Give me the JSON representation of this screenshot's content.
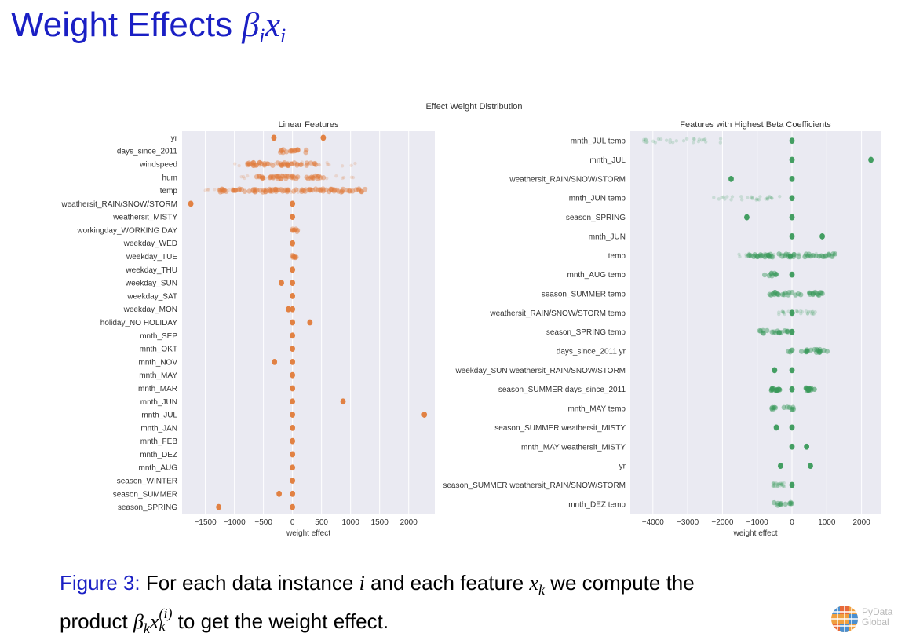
{
  "slide": {
    "title_text": "Weight Effects",
    "title_math_beta": "β",
    "title_math_i": "i",
    "title_math_x": "x",
    "title_math_i2": "i",
    "caption_label": "Figure 3:",
    "caption_text_1": " For each data instance ",
    "caption_i": "i",
    "caption_text_2": " and each feature ",
    "caption_x": "x",
    "caption_k": "k",
    "caption_text_3": " we compute the",
    "caption_text_4": "product ",
    "caption_beta": "β",
    "caption_k2": "k",
    "caption_x2": "x",
    "caption_sup": "(i)",
    "caption_k3": "k",
    "caption_text_5": " to get the weight effect.",
    "logo_line1": "PyData",
    "logo_line2": "Global",
    "title_color": "#1a1fc4"
  },
  "chart_data": [
    {
      "type": "scatter",
      "suptitle": "Effect Weight Distribution",
      "title": "Linear Features",
      "xlabel": "weight effect",
      "xlim": [
        -1900,
        2450
      ],
      "xticks": [
        -1500,
        -1000,
        -500,
        0,
        500,
        1000,
        1500,
        2000
      ],
      "xtick_labels": [
        "−1500",
        "−1000",
        "−500",
        "0",
        "500",
        "1000",
        "1500",
        "2000"
      ],
      "color": "#e07b39",
      "background": "#eaeaf2",
      "grid": true,
      "features": [
        {
          "label": "yr",
          "values": [
            -320,
            530
          ]
        },
        {
          "label": "days_since_2011",
          "range": [
            -250,
            260
          ]
        },
        {
          "label": "windspeed",
          "range": [
            -780,
            520
          ],
          "faint": [
            -1100,
            1180
          ]
        },
        {
          "label": "hum",
          "range": [
            -680,
            580
          ],
          "faint": [
            -950,
            1100
          ]
        },
        {
          "label": "temp",
          "range": [
            -1250,
            1270
          ],
          "faint": [
            -1500,
            1300
          ]
        },
        {
          "label": "weathersit_RAIN/SNOW/STORM",
          "values": [
            -1750,
            0
          ]
        },
        {
          "label": "weathersit_MISTY",
          "values": [
            0
          ]
        },
        {
          "label": "workingday_WORKING DAY",
          "range": [
            -5,
            95
          ]
        },
        {
          "label": "weekday_WED",
          "values": [
            0
          ]
        },
        {
          "label": "weekday_TUE",
          "range": [
            -5,
            70
          ]
        },
        {
          "label": "weekday_THU",
          "values": [
            0
          ]
        },
        {
          "label": "weekday_SUN",
          "values": [
            -190,
            0
          ]
        },
        {
          "label": "weekday_SAT",
          "values": [
            0
          ]
        },
        {
          "label": "weekday_MON",
          "values": [
            -70,
            0
          ]
        },
        {
          "label": "holiday_NO HOLIDAY",
          "values": [
            0,
            300
          ]
        },
        {
          "label": "mnth_SEP",
          "values": [
            0
          ]
        },
        {
          "label": "mnth_OKT",
          "values": [
            0
          ]
        },
        {
          "label": "mnth_NOV",
          "values": [
            -310,
            0
          ]
        },
        {
          "label": "mnth_MAY",
          "values": [
            0
          ]
        },
        {
          "label": "mnth_MAR",
          "values": [
            0
          ]
        },
        {
          "label": "mnth_JUN",
          "values": [
            0,
            870
          ]
        },
        {
          "label": "mnth_JUL",
          "values": [
            0,
            2270
          ]
        },
        {
          "label": "mnth_JAN",
          "values": [
            0
          ]
        },
        {
          "label": "mnth_FEB",
          "values": [
            0
          ]
        },
        {
          "label": "mnth_DEZ",
          "values": [
            0
          ]
        },
        {
          "label": "mnth_AUG",
          "values": [
            0
          ]
        },
        {
          "label": "season_WINTER",
          "values": [
            0
          ]
        },
        {
          "label": "season_SUMMER",
          "values": [
            -230,
            0
          ]
        },
        {
          "label": "season_SPRING",
          "values": [
            -1270,
            0
          ]
        }
      ]
    },
    {
      "type": "scatter",
      "title": "Features with Highest Beta Coefficients",
      "xlabel": "weight effect",
      "xlim": [
        -4650,
        2550
      ],
      "xticks": [
        -4000,
        -3000,
        -2000,
        -1000,
        0,
        1000,
        2000
      ],
      "xtick_labels": [
        "−4000",
        "−3000",
        "−2000",
        "−1000",
        "0",
        "1000",
        "2000"
      ],
      "color": "#3a9a5a",
      "background": "#eaeaf2",
      "grid": true,
      "features": [
        {
          "label": "mnth_JUL temp",
          "values": [
            0
          ],
          "faint": [
            -4500,
            -2000
          ]
        },
        {
          "label": "mnth_JUL",
          "values": [
            0,
            2270
          ]
        },
        {
          "label": "weathersit_RAIN/SNOW/STORM",
          "values": [
            -1750,
            0
          ]
        },
        {
          "label": "mnth_JUN temp",
          "values": [
            0
          ],
          "faint": [
            -2300,
            -300
          ]
        },
        {
          "label": "season_SPRING",
          "values": [
            -1300,
            0
          ]
        },
        {
          "label": "mnth_JUN",
          "values": [
            0,
            870
          ]
        },
        {
          "label": "temp",
          "range": [
            -1250,
            1270
          ],
          "faint": [
            -1600,
            1300
          ]
        },
        {
          "label": "mnth_AUG temp",
          "values": [
            0
          ],
          "range": [
            -900,
            -450
          ]
        },
        {
          "label": "season_SUMMER temp",
          "range": [
            -650,
            900
          ]
        },
        {
          "label": "weathersit_RAIN/SNOW/STORM temp",
          "values": [
            0
          ],
          "faint": [
            -400,
            700
          ]
        },
        {
          "label": "season_SPRING temp",
          "values": [
            0
          ],
          "range": [
            -1000,
            -100
          ]
        },
        {
          "label": "days_since_2011 yr",
          "range": [
            -150,
            1050
          ]
        },
        {
          "label": "weekday_SUN weathersit_RAIN/SNOW/STORM",
          "values": [
            0,
            -500
          ]
        },
        {
          "label": "season_SUMMER days_since_2011",
          "values": [
            0
          ],
          "clusters": [
            [
              -600,
              -350
            ],
            [
              400,
              650
            ]
          ]
        },
        {
          "label": "mnth_MAY temp",
          "range": [
            -600,
            50
          ]
        },
        {
          "label": "season_SUMMER weathersit_MISTY",
          "values": [
            -450,
            0
          ]
        },
        {
          "label": "mnth_MAY weathersit_MISTY",
          "values": [
            0,
            420
          ]
        },
        {
          "label": "yr",
          "values": [
            -330,
            530
          ]
        },
        {
          "label": "season_SUMMER weathersit_RAIN/SNOW/STORM",
          "values": [
            0
          ],
          "faint": [
            -550,
            -200
          ]
        },
        {
          "label": "mnth_DEZ temp",
          "range": [
            -550,
            0
          ]
        }
      ]
    }
  ]
}
